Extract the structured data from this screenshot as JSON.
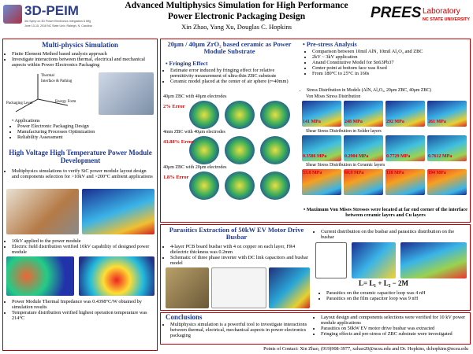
{
  "header": {
    "title_line1": "Advanced Multiphysics Simulation for High Performance",
    "title_line2": "Power Electronic Packaging Design",
    "authors": "Xin Zhao, Yang Xu, Douglas C. Hopkins",
    "logo_left": {
      "name": "3D-PEIM",
      "line1": "3rd Symp on 3D Power Electronics Integration & Mfg",
      "line2": "June 13-15, 2016  NC State Univ.  Raleigh, N. Carolina"
    },
    "logo_right": {
      "name": "PREES",
      "lab": "Laboratory",
      "university": "NC STATE UNIVERSITY"
    }
  },
  "multiphysics": {
    "heading": "Multi-physics Simulation",
    "bullets": [
      "Finite Element Method based analysis approach",
      "Investigate interactions between thermal, electrical and mechanical aspects within Power Electronics Packaging"
    ],
    "diagram_labels": [
      "Thermal",
      "Interface & Pathing",
      "Packaging Level",
      "Energy Form"
    ],
    "applications": {
      "heading": "Applications",
      "items": [
        "Power Electronic Packaging Design",
        "Manufacturing Processes Optimization",
        "Reliability Assessment"
      ]
    }
  },
  "hv_module": {
    "heading": "High Voltage High Temperature Power Module Development",
    "intro": [
      "Multiphysics simulations to verify SiC power module layout design and components selection for >10kV and >200°C ambient applications"
    ],
    "field": [
      "10kV applied to the power module",
      "Electric field distribution verified 10kV capability of designed power module"
    ],
    "thermal": [
      "Power Module Thermal Impedance was 0.4398°C/W obtained by simulation results",
      "Temperature distribution verified highest operation temperature was 214°C"
    ]
  },
  "zbc": {
    "heading": "20μm / 40μm ZrO₂ based ceramic as Power Module Substrate",
    "subheading": "Fringing Effect",
    "bullets": [
      "Estimate error induced by fringing effect for relative permittivity measurement of ultra-thin ZBC substrate",
      "Ceramic model placed at the center of air sphere (r=40mm)"
    ],
    "cases": [
      {
        "caption": "40μm ZBC with 40μm electrodes",
        "error": "2% Error"
      },
      {
        "caption": "4mm ZBC with 40μm electrodes",
        "error": "43.88% Error"
      },
      {
        "caption": "40μm ZBC with 20μm electrodes",
        "error": "1.8% Error"
      }
    ]
  },
  "prestress": {
    "heading": "Pre-stress Analysis",
    "bullets": [
      "Comparison between 10mil AlN, 10mil Al₂O₃ and ZBC",
      "2kV ~ 3kV application",
      "Anand Constitutive Model for Sn63Pb37",
      "Center point at bottom face was fixed",
      "From 180°C to 25°C in 160s"
    ],
    "models": "Stress Distribution in Models (AlN, Al₂O₃, 20μm ZBC, 40μm ZBC)",
    "groups": [
      {
        "title": "Von Mises Stress Distribution",
        "labels": [
          "141 MPa",
          "248 MPa",
          "292 MPa",
          "261 MPa"
        ]
      },
      {
        "title": "Shear Stress Distribution in Solder layers",
        "labels": [
          "0.3586 MPa",
          "0.2904 MPa",
          "0.7729 MPa",
          "0.7612 MPa"
        ]
      },
      {
        "title": "Shear Stress Distribution in Ceramic layers",
        "labels": [
          "33.8 MPa",
          "60.9 MPa",
          "118 MPa",
          "194 MPa"
        ]
      }
    ],
    "summary": "Maximum Von Mises Stresses were located at far end corner of the interface between ceramic layers and Cu layers"
  },
  "parasitics": {
    "heading": "Parasitics Extraction of 50kW EV Motor Drive Busbar",
    "left_bullets": [
      "4-layer PCB board busbar with 4 oz copper on each layer, FR4 dielectric thickness was 0.2mm",
      "Schematic of three phase inverter with DC link capacitors and busbar model"
    ],
    "right_intro": [
      "Current distribution on the busbar and parasitics distribution on the busbar"
    ],
    "formula": "L= L₁ + L₂ − 2M",
    "right_bullets": [
      "Parasitics on the ceramic capacitor loop was 4 nH",
      "Parasitics on the film capacitor loop was 9 nH"
    ]
  },
  "conclusions": {
    "heading": "Conclusions",
    "left": [
      "Multiphysics simulation is a powerful tool to investigate interactions between thermal, electrical, mechanical aspects in power electronics packaging"
    ],
    "right": [
      "Layout design and components selections were verified for 10 kV power module applications",
      "Parasitics on 50kW EV motor drive busbar was extracted",
      "Fringing effects and pre-stress of ZBC substrate were investigated"
    ]
  },
  "footer": "Points of Contact: Xin Zhao, (919)908-3977, xzhao20@ncsu.edu and Dr. Hopkins, dchopkins@ncsu.edu"
}
